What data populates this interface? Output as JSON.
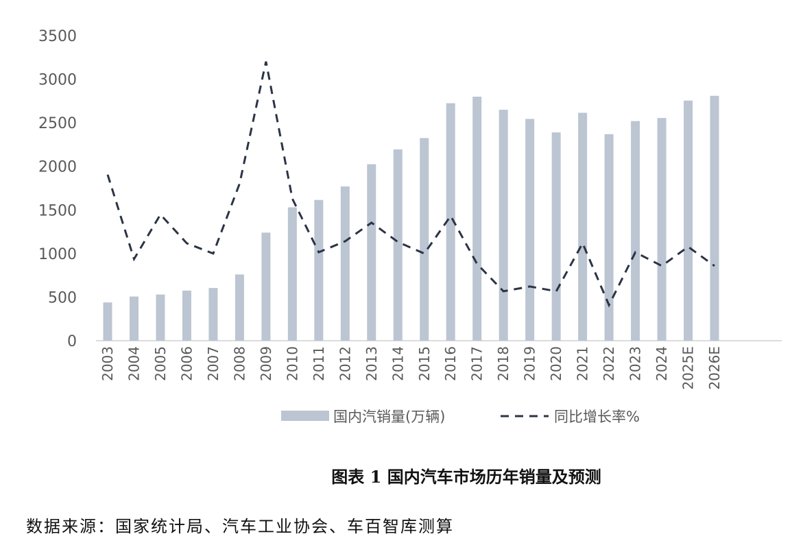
{
  "chart_data": {
    "type": "bar+line",
    "title": "",
    "xlabel": "",
    "ylabel": "",
    "ylim": [
      0,
      3500
    ],
    "yticks": [
      0,
      500,
      1000,
      1500,
      2000,
      2500,
      3000,
      3500
    ],
    "grid": false,
    "legend_position": "bottom",
    "categories": [
      "2003",
      "2004",
      "2005",
      "2006",
      "2007",
      "2008",
      "2009",
      "2010",
      "2011",
      "2012",
      "2013",
      "2014",
      "2015",
      "2016",
      "2017",
      "2018",
      "2019",
      "2020",
      "2021",
      "2022",
      "2023",
      "2024",
      "2025E",
      "2026E"
    ],
    "series": [
      {
        "name": "国内汽销量(万辆)",
        "type": "bar",
        "color": "#bcc5d2",
        "values": [
          439,
          507,
          530,
          575,
          605,
          760,
          1240,
          1530,
          1615,
          1770,
          2025,
          2195,
          2325,
          2725,
          2800,
          2650,
          2545,
          2390,
          2615,
          2370,
          2520,
          2555,
          2755,
          2810
        ]
      },
      {
        "name": "同比增长率%",
        "type": "line",
        "style": "dashed",
        "color": "#2b3445",
        "values": [
          1905,
          937,
          1448,
          1118,
          1000,
          1802,
          3203,
          1629,
          1015,
          1141,
          1354,
          1133,
          1000,
          1432,
          881,
          567,
          622,
          567,
          1118,
          409,
          1015,
          858,
          1078,
          858
        ]
      }
    ]
  },
  "caption": "图表 1  国内汽车市场历年销量及预测",
  "source": "数据来源：国家统计局、汽车工业协会、车百智库测算"
}
